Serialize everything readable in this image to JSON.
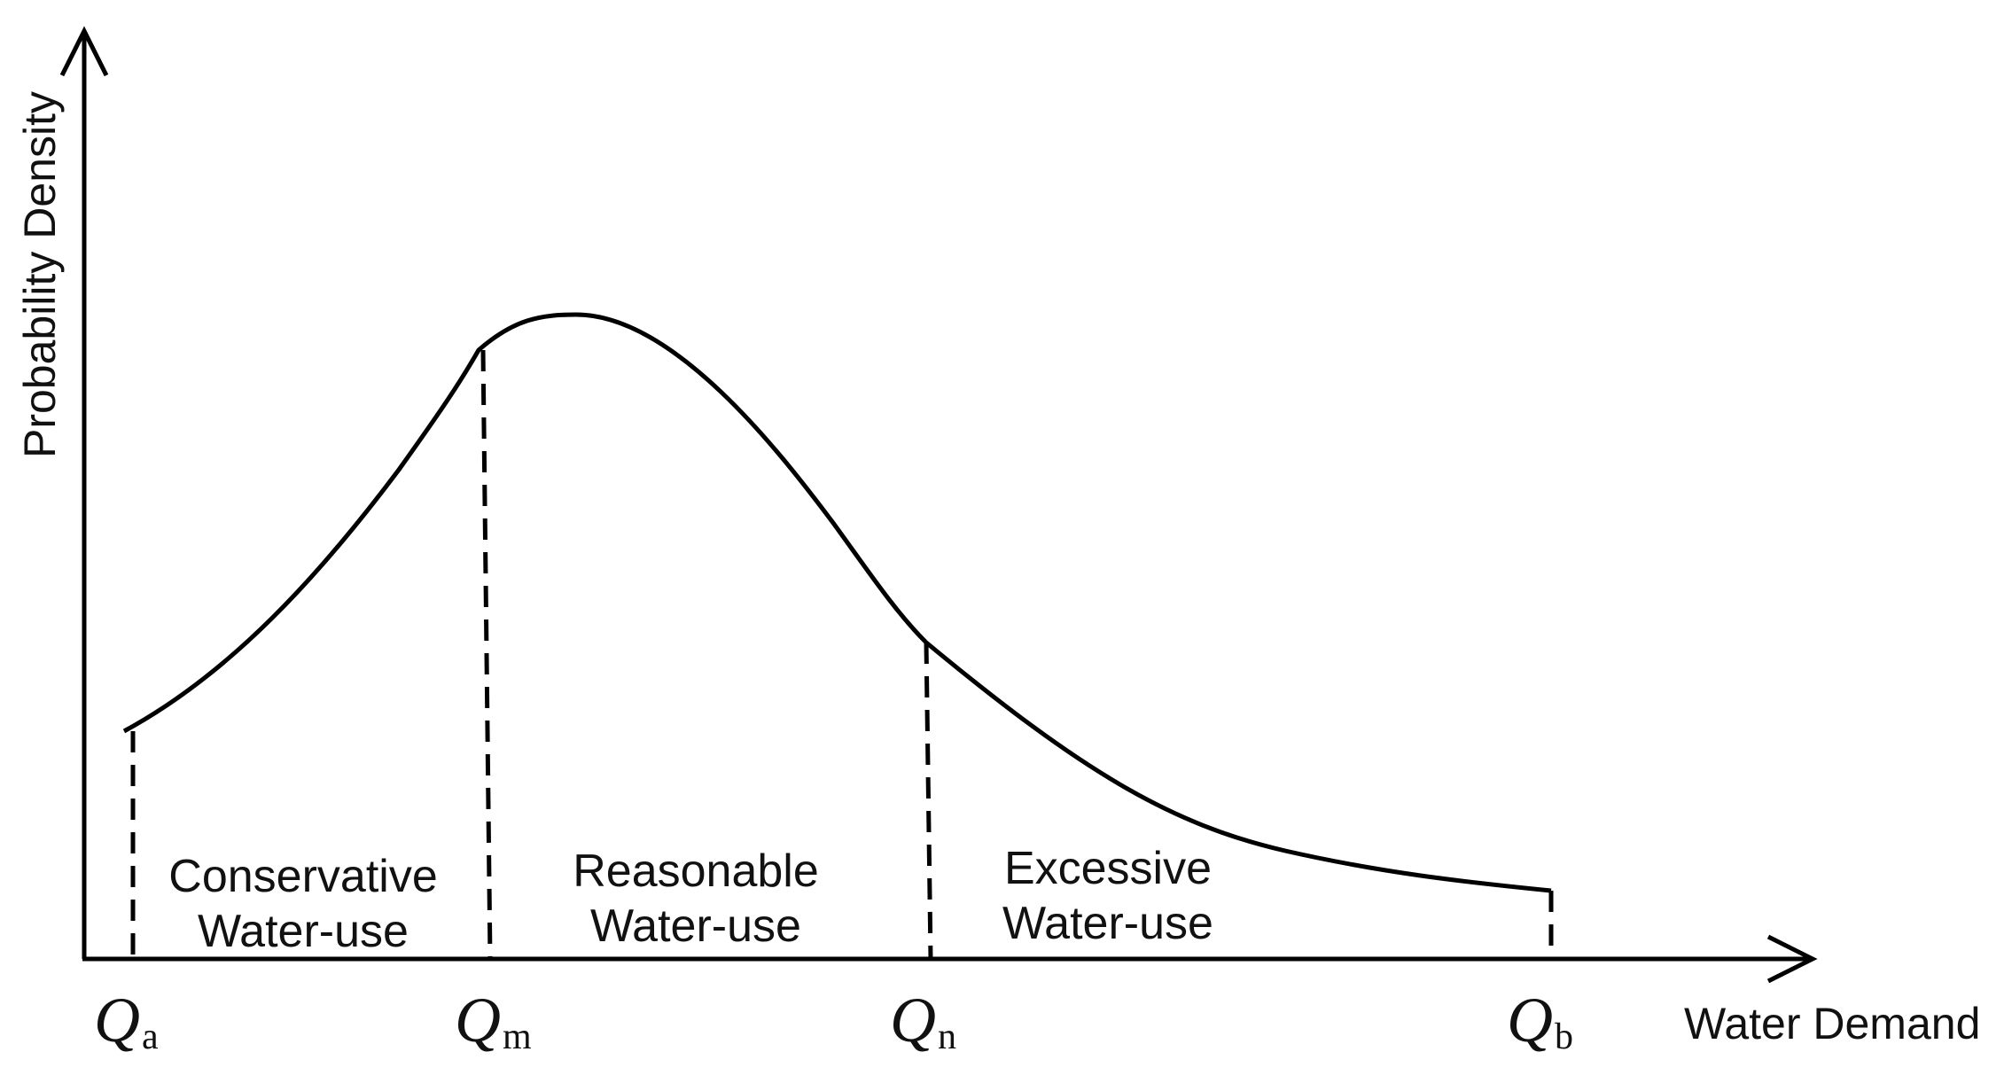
{
  "axes": {
    "y_label": "Probability Density",
    "x_label": "Water Demand"
  },
  "regions": [
    {
      "line1": "Conservative",
      "line2": "Water-use"
    },
    {
      "line1": "Reasonable",
      "line2": "Water-use"
    },
    {
      "line1": "Excessive",
      "line2": "Water-use"
    }
  ],
  "markers": [
    {
      "symbol": "Q",
      "subscript": "a"
    },
    {
      "symbol": "Q",
      "subscript": "m"
    },
    {
      "symbol": "Q",
      "subscript": "n"
    },
    {
      "symbol": "Q",
      "subscript": "b"
    }
  ],
  "colors": {
    "line": "#000000",
    "background": "#ffffff"
  }
}
